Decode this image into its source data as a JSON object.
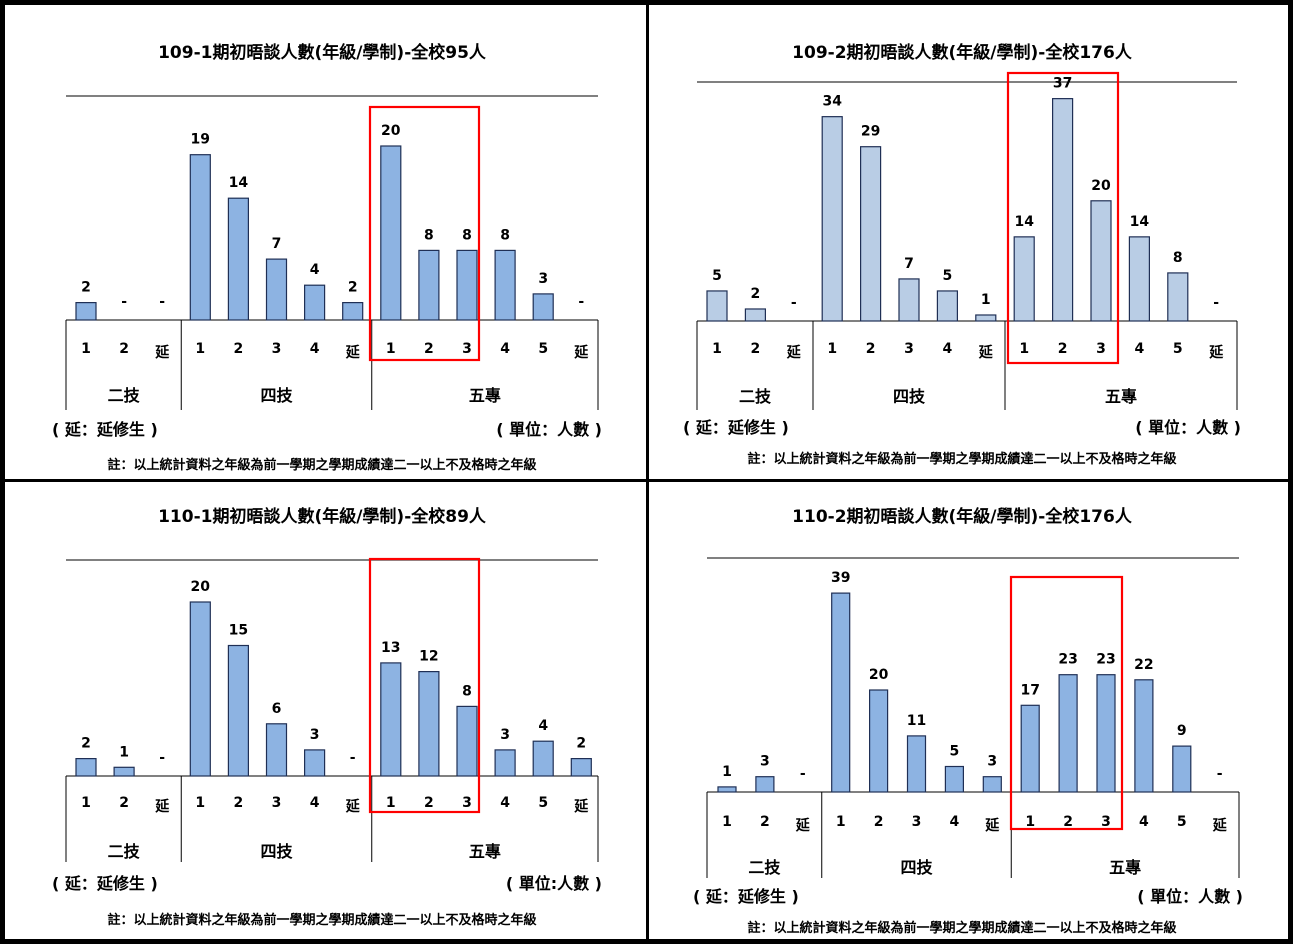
{
  "chart_data": [
    {
      "type": "bar",
      "title": "109-1期初晤談人數(年級/學制)-全校95人",
      "categories": [
        "1",
        "2",
        "延",
        "1",
        "2",
        "3",
        "4",
        "延",
        "1",
        "2",
        "3",
        "4",
        "5",
        "延"
      ],
      "groups": [
        "二技",
        "四技",
        "五專"
      ],
      "values": [
        2,
        null,
        null,
        19,
        14,
        7,
        4,
        2,
        20,
        8,
        8,
        8,
        3,
        null
      ],
      "value_labels": [
        "2",
        "-",
        "-",
        "19",
        "14",
        "7",
        "4",
        "2",
        "20",
        "8",
        "8",
        "8",
        "3",
        "-"
      ],
      "note_left": "( 延：延修生 )",
      "note_right": "( 單位：人數 )",
      "footnote": "註：以上統計資料之年級為前一學期之學期成績達二一以上不及格時之年級",
      "bar_color": "#8db3e2",
      "highlight_color": "#ff0000"
    },
    {
      "type": "bar",
      "title": "109-2期初晤談人數(年級/學制)-全校176人",
      "categories": [
        "1",
        "2",
        "延",
        "1",
        "2",
        "3",
        "4",
        "延",
        "1",
        "2",
        "3",
        "4",
        "5",
        "延"
      ],
      "groups": [
        "二技",
        "四技",
        "五專"
      ],
      "values": [
        5,
        2,
        null,
        34,
        29,
        7,
        5,
        1,
        14,
        37,
        20,
        14,
        8,
        null
      ],
      "value_labels": [
        "5",
        "2",
        "-",
        "34",
        "29",
        "7",
        "5",
        "1",
        "14",
        "37",
        "20",
        "14",
        "8",
        "-"
      ],
      "note_left": "( 延：延修生 )",
      "note_right": "( 單位：人數 )",
      "footnote": "註：以上統計資料之年級為前一學期之學期成績達二一以上不及格時之年級",
      "bar_color": "#b9cde5",
      "highlight_color": "#ff0000"
    },
    {
      "type": "bar",
      "title": "110-1期初晤談人數(年級/學制)-全校89人",
      "categories": [
        "1",
        "2",
        "延",
        "1",
        "2",
        "3",
        "4",
        "延",
        "1",
        "2",
        "3",
        "4",
        "5",
        "延"
      ],
      "groups": [
        "二技",
        "四技",
        "五專"
      ],
      "values": [
        2,
        1,
        null,
        20,
        15,
        6,
        3,
        null,
        13,
        12,
        8,
        3,
        4,
        2
      ],
      "value_labels": [
        "2",
        "1",
        "-",
        "20",
        "15",
        "6",
        "3",
        "-",
        "13",
        "12",
        "8",
        "3",
        "4",
        "2"
      ],
      "note_left": "( 延：延修生 )",
      "note_right": "( 單位:人數 )",
      "footnote": "註：以上統計資料之年級為前一學期之學期成績達二一以上不及格時之年級",
      "bar_color": "#8db3e2",
      "highlight_color": "#ff0000"
    },
    {
      "type": "bar",
      "title": "110-2期初晤談人數(年級/學制)-全校176人",
      "categories": [
        "1",
        "2",
        "延",
        "1",
        "2",
        "3",
        "4",
        "延",
        "1",
        "2",
        "3",
        "4",
        "5",
        "延"
      ],
      "groups": [
        "二技",
        "四技",
        "五專"
      ],
      "values": [
        1,
        3,
        null,
        39,
        20,
        11,
        5,
        3,
        17,
        23,
        23,
        22,
        9,
        null
      ],
      "value_labels": [
        "1",
        "3",
        "-",
        "39",
        "20",
        "11",
        "5",
        "3",
        "17",
        "23",
        "23",
        "22",
        "9",
        "-"
      ],
      "note_left": "( 延：延修生 )",
      "note_right": "( 單位：人數 )",
      "footnote": "註：以上統計資料之年級為前一學期之學期成績達二一以上不及格時之年級",
      "bar_color": "#8db3e2",
      "highlight_color": "#ff0000"
    }
  ]
}
